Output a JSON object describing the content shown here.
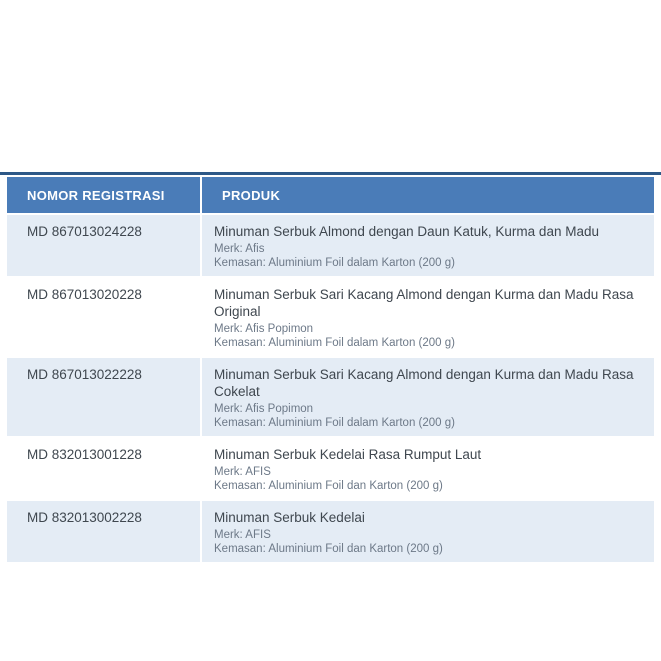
{
  "page": {
    "background_color": "#ffffff",
    "top_rule_color": "#2d5887"
  },
  "table": {
    "header_bg_color": "#4a7cb8",
    "alt_row_bg_color": "#e4ecf5",
    "columns": [
      "NOMOR REGISTRASI",
      "PRODUK"
    ],
    "rows": [
      {
        "nomor": "MD 867013024228",
        "produk": "Minuman Serbuk Almond dengan Daun Katuk, Kurma dan Madu",
        "merk": "Merk: Afis",
        "kemasan": "Kemasan: Aluminium Foil dalam Karton (200 g)"
      },
      {
        "nomor": "MD 867013020228",
        "produk": "Minuman Serbuk Sari Kacang Almond dengan Kurma dan Madu Rasa Original",
        "merk": "Merk: Afis Popimon",
        "kemasan": "Kemasan: Aluminium Foil dalam Karton (200 g)"
      },
      {
        "nomor": "MD 867013022228",
        "produk": "Minuman Serbuk Sari Kacang Almond dengan Kurma dan Madu Rasa Cokelat",
        "merk": "Merk: Afis Popimon",
        "kemasan": "Kemasan: Aluminium Foil dalam Karton (200 g)"
      },
      {
        "nomor": "MD 832013001228",
        "produk": "Minuman Serbuk Kedelai Rasa Rumput Laut",
        "merk": "Merk: AFIS",
        "kemasan": "Kemasan: Aluminium Foil dan Karton (200 g)"
      },
      {
        "nomor": "MD 832013002228",
        "produk": "Minuman Serbuk Kedelai",
        "merk": "Merk: AFIS",
        "kemasan": "Kemasan: Aluminium Foil dan Karton (200 g)"
      }
    ]
  }
}
